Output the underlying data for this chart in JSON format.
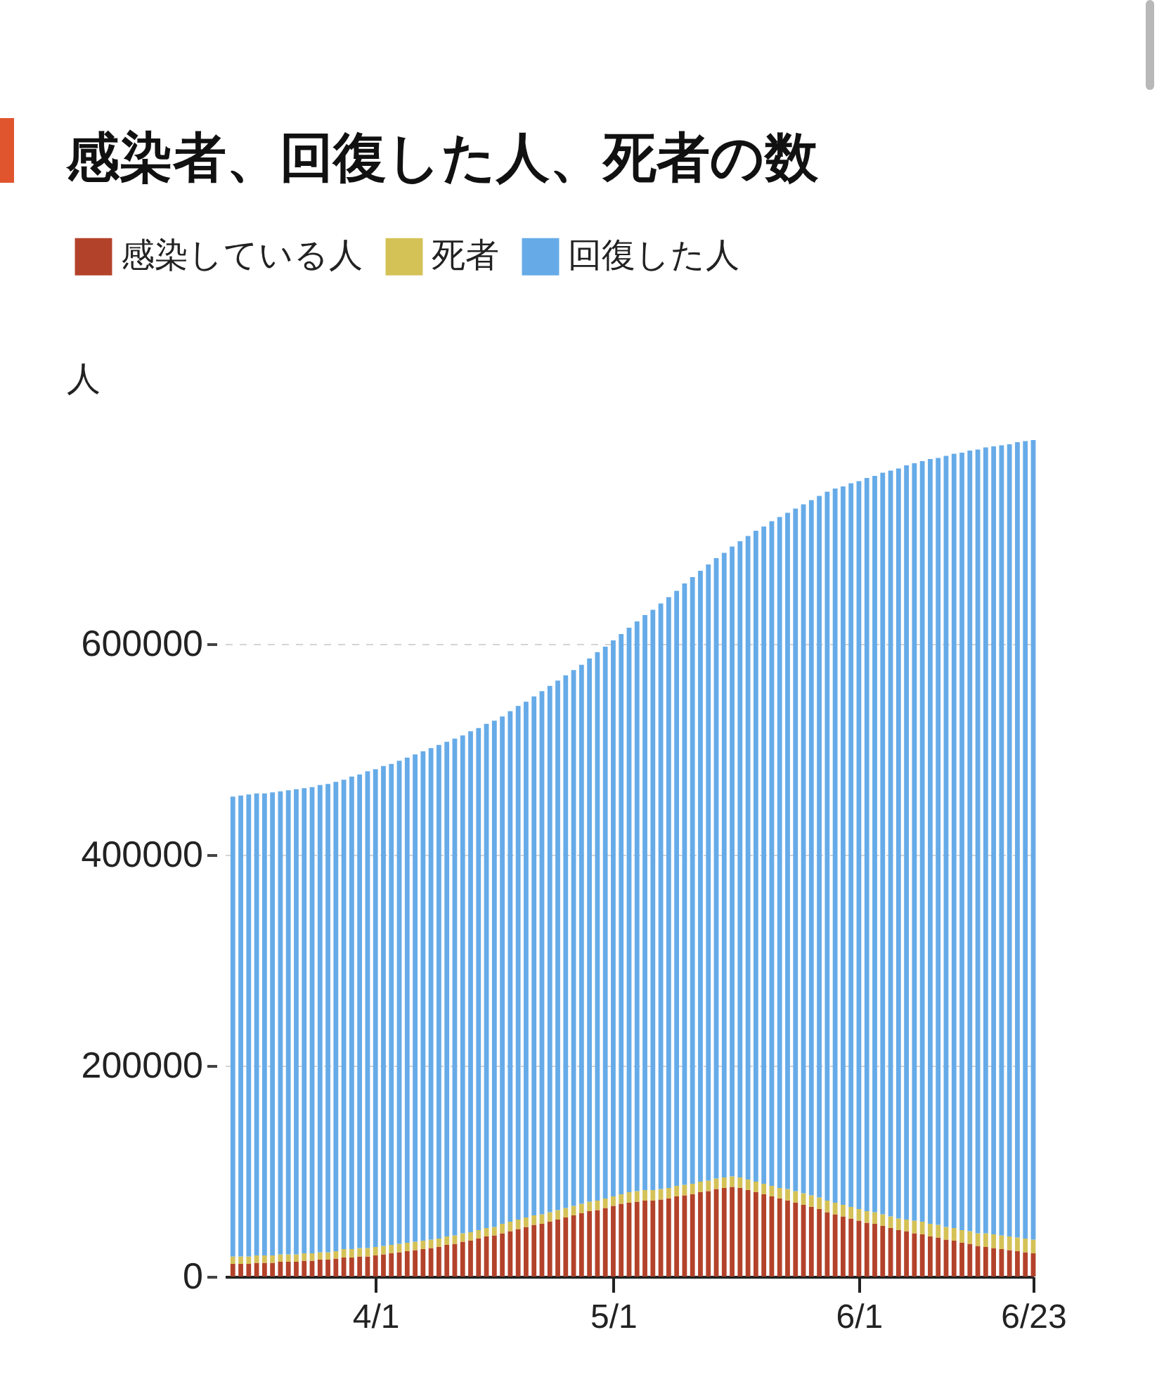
{
  "chart_data": {
    "type": "bar",
    "title": "感染者、回復した人、死者の数",
    "ylabel": "人",
    "stacked": true,
    "legend": "top left",
    "grid": "y",
    "ylim": [
      0,
      793000
    ],
    "yticks": [
      0,
      200000,
      400000,
      600000
    ],
    "xlim": [
      "--03-13",
      "--06-23"
    ],
    "xticks": [
      {
        "value": "--04-01",
        "label": "4/1"
      },
      {
        "value": "--05-01",
        "label": "5/1"
      },
      {
        "value": "--06-01",
        "label": "6/1"
      },
      {
        "value": "--06-23",
        "label": "6/23"
      }
    ],
    "x": [
      "--03-14",
      "--03-15",
      "--03-16",
      "--03-17",
      "--03-18",
      "--03-19",
      "--03-20",
      "--03-21",
      "--03-22",
      "--03-23",
      "--03-24",
      "--03-25",
      "--03-26",
      "--03-27",
      "--03-28",
      "--03-29",
      "--03-30",
      "--03-31",
      "--04-01",
      "--04-02",
      "--04-03",
      "--04-04",
      "--04-05",
      "--04-06",
      "--04-07",
      "--04-08",
      "--04-09",
      "--04-10",
      "--04-11",
      "--04-12",
      "--04-13",
      "--04-14",
      "--04-15",
      "--04-16",
      "--04-17",
      "--04-18",
      "--04-19",
      "--04-20",
      "--04-21",
      "--04-22",
      "--04-23",
      "--04-24",
      "--04-25",
      "--04-26",
      "--04-27",
      "--04-28",
      "--04-29",
      "--04-30",
      "--05-01",
      "--05-02",
      "--05-03",
      "--05-04",
      "--05-05",
      "--05-06",
      "--05-07",
      "--05-08",
      "--05-09",
      "--05-10",
      "--05-11",
      "--05-12",
      "--05-13",
      "--05-14",
      "--05-15",
      "--05-16",
      "--05-17",
      "--05-18",
      "--05-19",
      "--05-20",
      "--05-21",
      "--05-22",
      "--05-23",
      "--05-24",
      "--05-25",
      "--05-26",
      "--05-27",
      "--05-28",
      "--05-29",
      "--05-30",
      "--05-31",
      "--06-01",
      "--06-02",
      "--06-03",
      "--06-04",
      "--06-05",
      "--06-06",
      "--06-07",
      "--06-08",
      "--06-09",
      "--06-10",
      "--06-11",
      "--06-12",
      "--06-13",
      "--06-14",
      "--06-15",
      "--06-16",
      "--06-17",
      "--06-18",
      "--06-19",
      "--06-20",
      "--06-21",
      "--06-22",
      "--06-23"
    ],
    "series": [
      {
        "name": "感染している人",
        "color": "#b3422a",
        "values": [
          12000,
          12000,
          12000,
          13000,
          13000,
          13000,
          14000,
          14000,
          14000,
          15000,
          15000,
          16000,
          16000,
          17000,
          18000,
          18000,
          19000,
          19000,
          20000,
          21000,
          22000,
          23000,
          24000,
          25000,
          26000,
          27000,
          28000,
          30000,
          31000,
          33000,
          34000,
          36000,
          38000,
          39000,
          41000,
          43000,
          45000,
          47000,
          49000,
          50000,
          52000,
          54000,
          56000,
          58000,
          60000,
          62000,
          63000,
          65000,
          67000,
          69000,
          70000,
          71000,
          72000,
          72000,
          73000,
          74000,
          76000,
          77000,
          78000,
          80000,
          81000,
          83000,
          84000,
          85000,
          84000,
          82000,
          80000,
          78000,
          76000,
          74000,
          72000,
          70000,
          68000,
          66000,
          64000,
          61000,
          59000,
          57000,
          55000,
          53000,
          51000,
          50000,
          48000,
          46000,
          44000,
          43000,
          41000,
          40000,
          38000,
          37000,
          35000,
          34000,
          32000,
          31000,
          29000,
          28000,
          27000,
          26000,
          25000,
          24000,
          23000,
          22000
        ]
      },
      {
        "name": "死者",
        "color": "#d5c257",
        "values": [
          7000,
          7000,
          7000,
          7000,
          7000,
          7000,
          7000,
          7000,
          7000,
          7000,
          7000,
          7000,
          7000,
          7000,
          8000,
          8000,
          8000,
          8000,
          8000,
          8000,
          8000,
          8000,
          8000,
          8000,
          8000,
          8000,
          8000,
          8000,
          8000,
          8000,
          8000,
          8000,
          8000,
          8000,
          9000,
          9000,
          9000,
          9000,
          9000,
          9000,
          9000,
          9000,
          9000,
          9000,
          9000,
          9000,
          9000,
          9000,
          9000,
          9000,
          10000,
          10000,
          10000,
          10000,
          10000,
          10000,
          10000,
          10000,
          10000,
          10000,
          10000,
          10000,
          10000,
          10000,
          10000,
          10000,
          10000,
          10000,
          10000,
          10000,
          11000,
          11000,
          11000,
          11000,
          11000,
          11000,
          11000,
          11000,
          11000,
          11000,
          11000,
          11000,
          11000,
          11000,
          11000,
          11000,
          12000,
          12000,
          12000,
          12000,
          12000,
          12000,
          12000,
          12000,
          12000,
          13000,
          13000,
          13000,
          13000,
          13000,
          13000,
          13000
        ]
      },
      {
        "name": "回復した人",
        "color": "#66abe8",
        "values": [
          436000,
          437000,
          438000,
          438000,
          438000,
          439000,
          439000,
          440000,
          441000,
          441000,
          442000,
          443000,
          444000,
          445000,
          445000,
          448000,
          449000,
          452000,
          453000,
          455000,
          456000,
          458000,
          460000,
          462000,
          464000,
          466000,
          468000,
          469000,
          471000,
          472000,
          475000,
          476000,
          478000,
          480000,
          481000,
          484000,
          487000,
          489000,
          492000,
          496000,
          499000,
          502000,
          505000,
          508000,
          511000,
          515000,
          520000,
          523000,
          527000,
          531000,
          535000,
          540000,
          545000,
          550000,
          555000,
          560000,
          564000,
          570000,
          575000,
          579000,
          584000,
          588000,
          592000,
          597000,
          603000,
          610000,
          617000,
          623000,
          630000,
          636000,
          641000,
          647000,
          653000,
          659000,
          665000,
          672000,
          677000,
          681000,
          686000,
          690000,
          695000,
          698000,
          703000,
          707000,
          711000,
          715000,
          718000,
          721000,
          725000,
          727000,
          731000,
          734000,
          737000,
          740000,
          743000,
          745000,
          747000,
          749000,
          751000,
          754000,
          756000,
          758000
        ]
      }
    ]
  }
}
